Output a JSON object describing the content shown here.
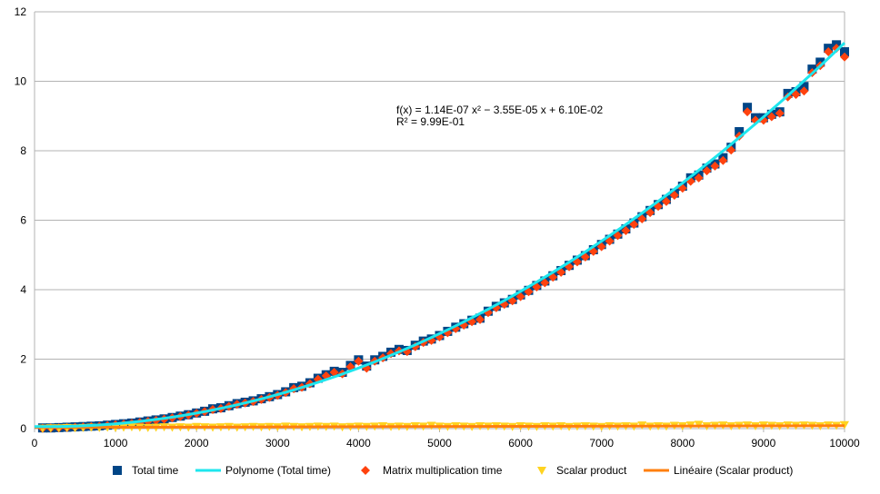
{
  "chart_data": {
    "type": "scatter",
    "xlim": [
      0,
      10000
    ],
    "ylim": [
      0,
      12
    ],
    "xticks": [
      0,
      1000,
      2000,
      3000,
      4000,
      5000,
      6000,
      7000,
      8000,
      9000,
      10000
    ],
    "yticks": [
      0,
      2,
      4,
      6,
      8,
      10,
      12
    ],
    "grid": "horizontal",
    "legend_position": "bottom",
    "annotation": {
      "line1": "f(x) = 1.14E-07 x² − 3.55E-05 x + 6.10E-02",
      "line2": "R² = 9.99E-01"
    },
    "colors": {
      "total_time": "#004586",
      "polynome": "#1ee6ee",
      "matrix_mult": "#ff420e",
      "scalar": "#ffd320",
      "lineaire": "#ff7f0e",
      "grid": "#b3b3b3"
    },
    "x": [
      100,
      200,
      300,
      400,
      500,
      600,
      700,
      800,
      900,
      1000,
      1100,
      1200,
      1300,
      1400,
      1500,
      1600,
      1700,
      1800,
      1900,
      2000,
      2100,
      2200,
      2300,
      2400,
      2500,
      2600,
      2700,
      2800,
      2900,
      3000,
      3100,
      3200,
      3300,
      3400,
      3500,
      3600,
      3700,
      3800,
      3900,
      4000,
      4100,
      4200,
      4300,
      4400,
      4500,
      4600,
      4700,
      4800,
      4900,
      5000,
      5100,
      5200,
      5300,
      5400,
      5500,
      5600,
      5700,
      5800,
      5900,
      6000,
      6100,
      6200,
      6300,
      6400,
      6500,
      6600,
      6700,
      6800,
      6900,
      7000,
      7100,
      7200,
      7300,
      7400,
      7500,
      7600,
      7700,
      7800,
      7900,
      8000,
      8100,
      8200,
      8300,
      8400,
      8500,
      8600,
      8700,
      8800,
      8900,
      9000,
      9100,
      9200,
      9300,
      9400,
      9500,
      9600,
      9700,
      9800,
      9900,
      10000
    ],
    "series": [
      {
        "name": "Total time",
        "values": [
          0.02,
          0.02,
          0.03,
          0.04,
          0.05,
          0.06,
          0.07,
          0.08,
          0.1,
          0.12,
          0.14,
          0.16,
          0.19,
          0.22,
          0.25,
          0.28,
          0.32,
          0.36,
          0.4,
          0.45,
          0.5,
          0.57,
          0.6,
          0.66,
          0.72,
          0.76,
          0.8,
          0.86,
          0.92,
          0.98,
          1.06,
          1.18,
          1.22,
          1.32,
          1.45,
          1.55,
          1.65,
          1.62,
          1.82,
          1.98,
          1.8,
          1.98,
          2.08,
          2.2,
          2.28,
          2.25,
          2.4,
          2.52,
          2.58,
          2.68,
          2.8,
          2.92,
          3.02,
          3.12,
          3.18,
          3.38,
          3.52,
          3.62,
          3.72,
          3.85,
          3.98,
          4.12,
          4.25,
          4.4,
          4.55,
          4.7,
          4.85,
          4.98,
          5.15,
          5.3,
          5.45,
          5.6,
          5.75,
          5.92,
          6.1,
          6.28,
          6.45,
          6.6,
          6.78,
          6.98,
          7.22,
          7.3,
          7.5,
          7.62,
          7.8,
          8.1,
          8.55,
          9.25,
          8.95,
          8.95,
          9.05,
          9.12,
          9.65,
          9.7,
          9.85,
          10.35,
          10.55,
          10.95,
          11.05,
          10.85
        ]
      },
      {
        "name": "Matrix multiplication time",
        "values": [
          0.01,
          0.02,
          0.02,
          0.03,
          0.04,
          0.05,
          0.06,
          0.07,
          0.09,
          0.11,
          0.13,
          0.15,
          0.18,
          0.21,
          0.24,
          0.27,
          0.31,
          0.35,
          0.39,
          0.44,
          0.49,
          0.55,
          0.58,
          0.64,
          0.7,
          0.74,
          0.78,
          0.84,
          0.9,
          0.96,
          1.04,
          1.15,
          1.19,
          1.29,
          1.42,
          1.52,
          1.62,
          1.58,
          1.78,
          1.94,
          1.74,
          1.94,
          2.04,
          2.16,
          2.24,
          2.22,
          2.36,
          2.48,
          2.54,
          2.64,
          2.76,
          2.88,
          2.98,
          3.08,
          3.14,
          3.34,
          3.48,
          3.58,
          3.68,
          3.8,
          3.94,
          4.08,
          4.2,
          4.36,
          4.5,
          4.66,
          4.8,
          4.94,
          5.1,
          5.24,
          5.4,
          5.56,
          5.7,
          5.88,
          6.04,
          6.22,
          6.4,
          6.54,
          6.72,
          6.92,
          7.12,
          7.22,
          7.42,
          7.56,
          7.72,
          8.02,
          8.42,
          9.12,
          8.88,
          8.88,
          8.98,
          9.08,
          9.55,
          9.62,
          9.72,
          10.25,
          10.45,
          10.85,
          10.95,
          10.7
        ]
      },
      {
        "name": "Scalar product",
        "values": [
          0.01,
          0.02,
          0.02,
          0.03,
          0.02,
          0.03,
          0.04,
          0.03,
          0.04,
          0.03,
          0.04,
          0.05,
          0.04,
          0.03,
          0.04,
          0.05,
          0.04,
          0.05,
          0.04,
          0.06,
          0.05,
          0.04,
          0.05,
          0.06,
          0.04,
          0.05,
          0.06,
          0.05,
          0.06,
          0.05,
          0.07,
          0.06,
          0.05,
          0.06,
          0.07,
          0.06,
          0.07,
          0.05,
          0.06,
          0.07,
          0.06,
          0.07,
          0.08,
          0.06,
          0.07,
          0.06,
          0.08,
          0.07,
          0.09,
          0.07,
          0.06,
          0.08,
          0.07,
          0.06,
          0.08,
          0.07,
          0.08,
          0.07,
          0.06,
          0.08,
          0.07,
          0.06,
          0.08,
          0.07,
          0.08,
          0.06,
          0.07,
          0.08,
          0.07,
          0.06,
          0.08,
          0.07,
          0.08,
          0.07,
          0.1,
          0.07,
          0.08,
          0.07,
          0.09,
          0.08,
          0.1,
          0.12,
          0.08,
          0.09,
          0.1,
          0.08,
          0.09,
          0.1,
          0.08,
          0.1,
          0.09,
          0.08,
          0.1,
          0.09,
          0.1,
          0.09,
          0.08,
          0.1,
          0.09,
          0.11
        ]
      }
    ],
    "trendlines": [
      {
        "name": "Polynome (Total time)",
        "type": "polynomial",
        "coefficients": [
          0.061,
          -3.55e-05,
          1.14e-07
        ]
      },
      {
        "name": "Linéaire (Scalar product)",
        "type": "linear",
        "points": [
          [
            0,
            0.035
          ],
          [
            10000,
            0.085
          ]
        ]
      }
    ],
    "legend": [
      {
        "label": "Total time",
        "marker": "square"
      },
      {
        "label": "Polynome (Total time)",
        "marker": "line"
      },
      {
        "label": "Matrix multiplication time",
        "marker": "diamond"
      },
      {
        "label": "Scalar product",
        "marker": "triangle-down"
      },
      {
        "label": "Linéaire (Scalar product)",
        "marker": "line"
      }
    ]
  }
}
